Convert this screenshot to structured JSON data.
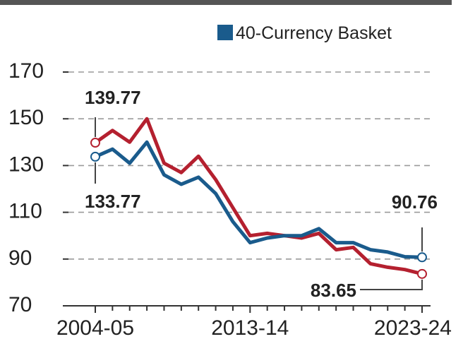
{
  "chart_data": {
    "type": "line",
    "title": "",
    "xlabel": "",
    "ylabel": "",
    "ylim": [
      70,
      170
    ],
    "yticks": [
      70,
      90,
      110,
      130,
      150,
      170
    ],
    "x_tick_labels": [
      "2004-05",
      "2013-14",
      "2023-24"
    ],
    "x_tick_positions": [
      0,
      9,
      19
    ],
    "x_count": 20,
    "grid": true,
    "legend": {
      "placement": "top-right",
      "entries": [
        {
          "name": "40-Currency Basket",
          "color": "#1a5b8c"
        }
      ]
    },
    "series": [
      {
        "name": "",
        "color": "#b4202f",
        "values": [
          139.77,
          145,
          140,
          150,
          131,
          127,
          134,
          124,
          112,
          100,
          101,
          100,
          99,
          101,
          94,
          95,
          88,
          86.5,
          85.5,
          83.65
        ]
      },
      {
        "name": "40-Currency Basket",
        "color": "#1a5b8c",
        "values": [
          133.77,
          137,
          131,
          140,
          126,
          122,
          125,
          118,
          106,
          97,
          99,
          100,
          100,
          103,
          97,
          97,
          94,
          93,
          91,
          90.76
        ]
      }
    ],
    "annotations": [
      {
        "text": "139.77",
        "series": 0,
        "index": 0
      },
      {
        "text": "133.77",
        "series": 1,
        "index": 0
      },
      {
        "text": "90.76",
        "series": 1,
        "index": 19
      },
      {
        "text": "83.65",
        "series": 0,
        "index": 19
      }
    ]
  }
}
